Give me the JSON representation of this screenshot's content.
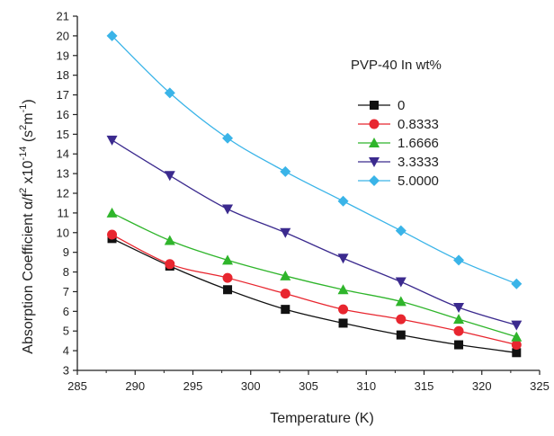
{
  "chart_data": {
    "type": "line",
    "title": "",
    "xlabel": "Temperature (K)",
    "ylabel_parts": {
      "main": "Absorption Coefficient α/f",
      "sup1": "2",
      "mid": " x10",
      "sup2": "-14",
      "unit_open": " (s",
      "sup3": "2",
      "unit_mid": "m",
      "sup4": "-1",
      "unit_close": ")"
    },
    "xlim": [
      285,
      325
    ],
    "ylim": [
      3,
      21
    ],
    "x_ticks": [
      285,
      290,
      295,
      300,
      305,
      310,
      315,
      320,
      325
    ],
    "y_ticks": [
      3,
      4,
      5,
      6,
      7,
      8,
      9,
      10,
      11,
      12,
      13,
      14,
      15,
      16,
      17,
      18,
      19,
      20,
      21
    ],
    "legend_title": "PVP-40 In wt%",
    "legend_position": "top-right",
    "x": [
      288,
      293,
      298,
      303,
      308,
      313,
      318,
      323
    ],
    "series": [
      {
        "name": "0",
        "color": "#111111",
        "marker": "square",
        "values": [
          9.7,
          8.3,
          7.1,
          6.1,
          5.4,
          4.8,
          4.3,
          3.9
        ]
      },
      {
        "name": "0.8333",
        "color": "#e8262f",
        "marker": "circle",
        "values": [
          9.9,
          8.4,
          7.7,
          6.9,
          6.1,
          5.6,
          5.0,
          4.3
        ]
      },
      {
        "name": "1.6666",
        "color": "#2fb52b",
        "marker": "triangle-up",
        "values": [
          11.0,
          9.6,
          8.6,
          7.8,
          7.1,
          6.5,
          5.6,
          4.7
        ]
      },
      {
        "name": "3.3333",
        "color": "#3b2a8e",
        "marker": "triangle-down",
        "values": [
          14.7,
          12.9,
          11.2,
          10.0,
          8.7,
          7.5,
          6.2,
          5.3
        ]
      },
      {
        "name": "5.0000",
        "color": "#3ab4e8",
        "marker": "diamond",
        "values": [
          20.0,
          17.1,
          14.8,
          13.1,
          11.6,
          10.1,
          8.6,
          7.4
        ]
      }
    ]
  }
}
